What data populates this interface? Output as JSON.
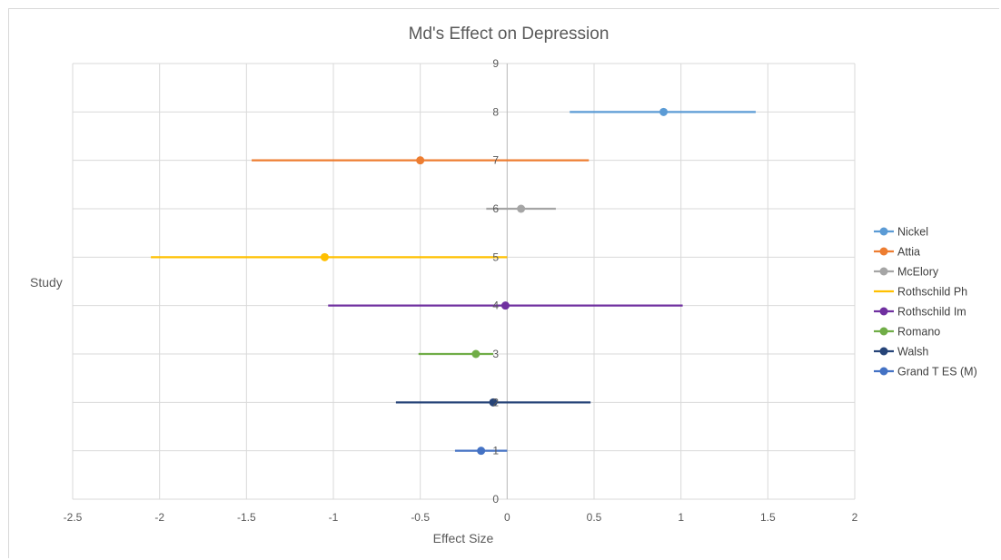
{
  "chart_data": {
    "type": "scatter",
    "title": "Md's Effect on Depression",
    "xlabel": "Effect Size",
    "ylabel": "Study",
    "xlim": [
      -2.5,
      2
    ],
    "ylim": [
      0,
      9
    ],
    "xticks": [
      -2.5,
      -2,
      -1.5,
      -1,
      -0.5,
      0,
      0.5,
      1,
      1.5,
      2
    ],
    "xtick_labels": [
      "-2.5",
      "-2",
      "-1.5",
      "-1",
      "-0.5",
      "0",
      "0.5",
      "1",
      "1.5",
      "2"
    ],
    "yticks": [
      0,
      1,
      2,
      3,
      4,
      5,
      6,
      7,
      8,
      9
    ],
    "ytick_labels": [
      "0",
      "1",
      "2",
      "3",
      "4",
      "5",
      "6",
      "7",
      "8",
      "9"
    ],
    "grid": true,
    "legend_position": "right",
    "series": [
      {
        "name": "Nickel",
        "color": "#5b9bd5",
        "y": 8,
        "x": 0.9,
        "ci": [
          0.36,
          1.43
        ],
        "marker": true
      },
      {
        "name": "Attia",
        "color": "#ed7d31",
        "y": 7,
        "x": -0.5,
        "ci": [
          -1.47,
          0.47
        ],
        "marker": true
      },
      {
        "name": "McElory",
        "color": "#a5a5a5",
        "y": 6,
        "x": 0.08,
        "ci": [
          -0.12,
          0.28
        ],
        "marker": true
      },
      {
        "name": "Rothschild Ph",
        "color": "#ffc000",
        "y": 5,
        "x": -1.05,
        "ci": [
          -2.05,
          0.0
        ],
        "marker": false
      },
      {
        "name": "Rothschild Im",
        "color": "#7030a0",
        "y": 4,
        "x": -0.01,
        "ci": [
          -1.03,
          1.01
        ],
        "marker": true
      },
      {
        "name": "Romano",
        "color": "#70ad47",
        "y": 3,
        "x": -0.18,
        "ci": [
          -0.51,
          -0.08
        ],
        "marker": true
      },
      {
        "name": "Walsh",
        "color": "#264478",
        "y": 2,
        "x": -0.08,
        "ci": [
          -0.64,
          0.48
        ],
        "marker": true
      },
      {
        "name": "Grand T ES (M)",
        "color": "#4472c4",
        "y": 1,
        "x": -0.15,
        "ci": [
          -0.3,
          0.0
        ],
        "marker": true
      }
    ]
  }
}
